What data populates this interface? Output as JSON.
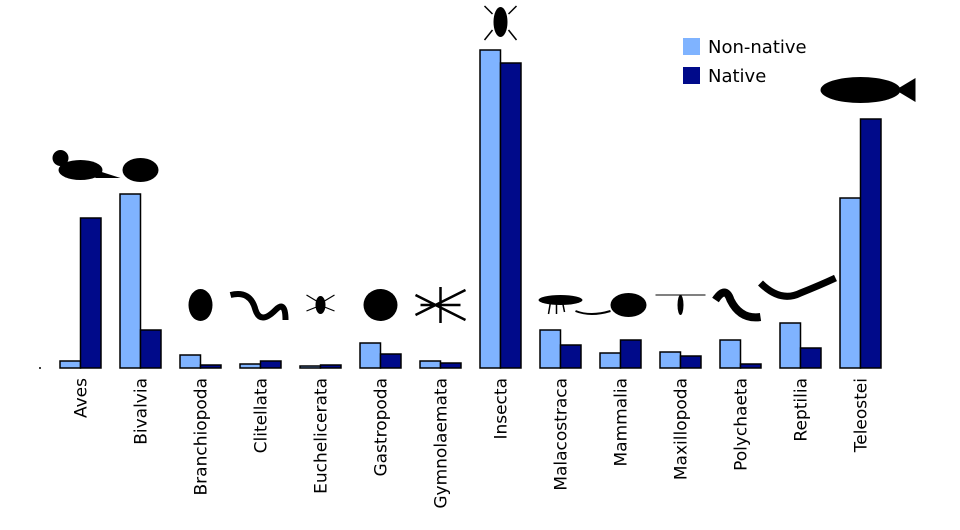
{
  "chart_data": {
    "type": "bar",
    "title": "",
    "xlabel": "",
    "ylabel": "",
    "ylim": [
      0,
      330
    ],
    "categories": [
      "Aves",
      "Bivalvia",
      "Branchiopoda",
      "Clitellata",
      "Euchelicerata",
      "Gastropoda",
      "Gymnolaemata",
      "Insecta",
      "Malacostraca",
      "Mammalia",
      "Maxillopoda",
      "Polychaeta",
      "Reptilia",
      "Teleostei"
    ],
    "series": [
      {
        "name": "Non-native",
        "color": "#7fb3ff",
        "values": [
          7,
          174,
          13,
          4,
          2,
          25,
          7,
          318,
          38,
          15,
          16,
          28,
          45,
          170
        ]
      },
      {
        "name": "Native",
        "color": "#000a8a",
        "values": [
          150,
          38,
          3,
          7,
          3,
          14,
          5,
          305,
          23,
          28,
          12,
          4,
          20,
          249
        ]
      }
    ],
    "legend": {
      "placement": "top-right",
      "entries": [
        "Non-native",
        "Native"
      ]
    },
    "grid": false,
    "icons": [
      "bird-icon",
      "clam-icon",
      "water-flea-icon",
      "worm-icon",
      "mite-icon",
      "snail-icon",
      "bryozoan-icon",
      "beetle-icon",
      "shrimp-icon",
      "rat-icon",
      "copepod-icon",
      "polychaete-icon",
      "lizard-icon",
      "fish-icon"
    ]
  }
}
